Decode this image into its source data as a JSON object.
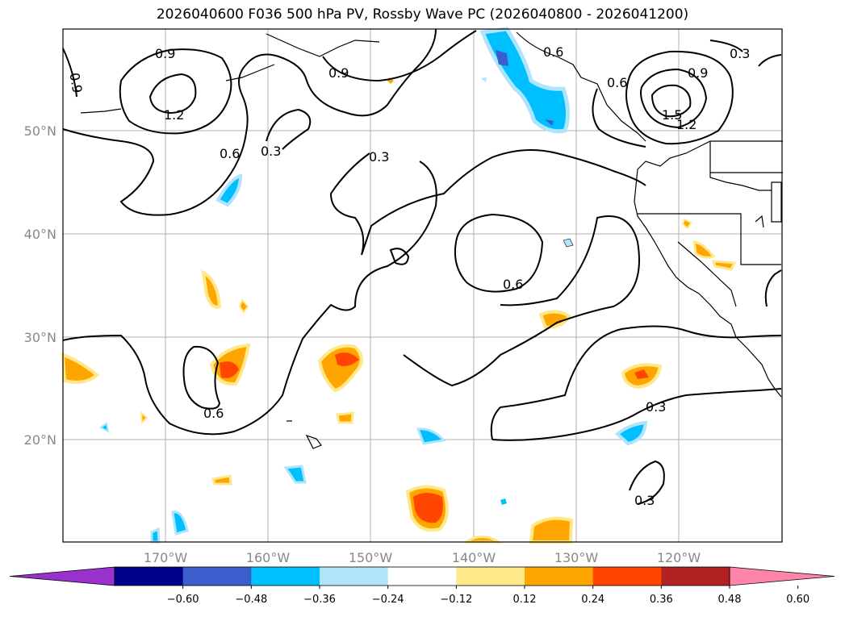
{
  "title": "2026040600 F036 500 hPa PV, Rossby Wave PC (2026040800 - 2026041200)",
  "lat_labels": [
    "50°N",
    "40°N",
    "30°N",
    "20°N"
  ],
  "lon_labels": [
    "170°W",
    "160°W",
    "150°W",
    "140°W",
    "130°W",
    "120°W"
  ],
  "contour_labels": [
    "0.9",
    "1.2",
    "0.6",
    "0.3",
    "0.9",
    "0.3",
    "0.6",
    "0.6",
    "0.9",
    "1.5",
    "1.2",
    "0.3",
    "0.6",
    "0.3",
    "0.6",
    "0.3",
    "0.9"
  ],
  "colorbar": {
    "ticks": [
      "−0.60",
      "−0.48",
      "−0.36",
      "−0.24",
      "−0.12",
      "0.12",
      "0.24",
      "0.36",
      "0.48",
      "0.60"
    ],
    "colors": [
      "#9932cc",
      "#00008b",
      "#3a5fcd",
      "#00bfff",
      "#afe4fa",
      "#ffffff",
      "#ffe88a",
      "#ffa500",
      "#ff4500",
      "#b22222",
      "#ff85a8"
    ]
  }
}
